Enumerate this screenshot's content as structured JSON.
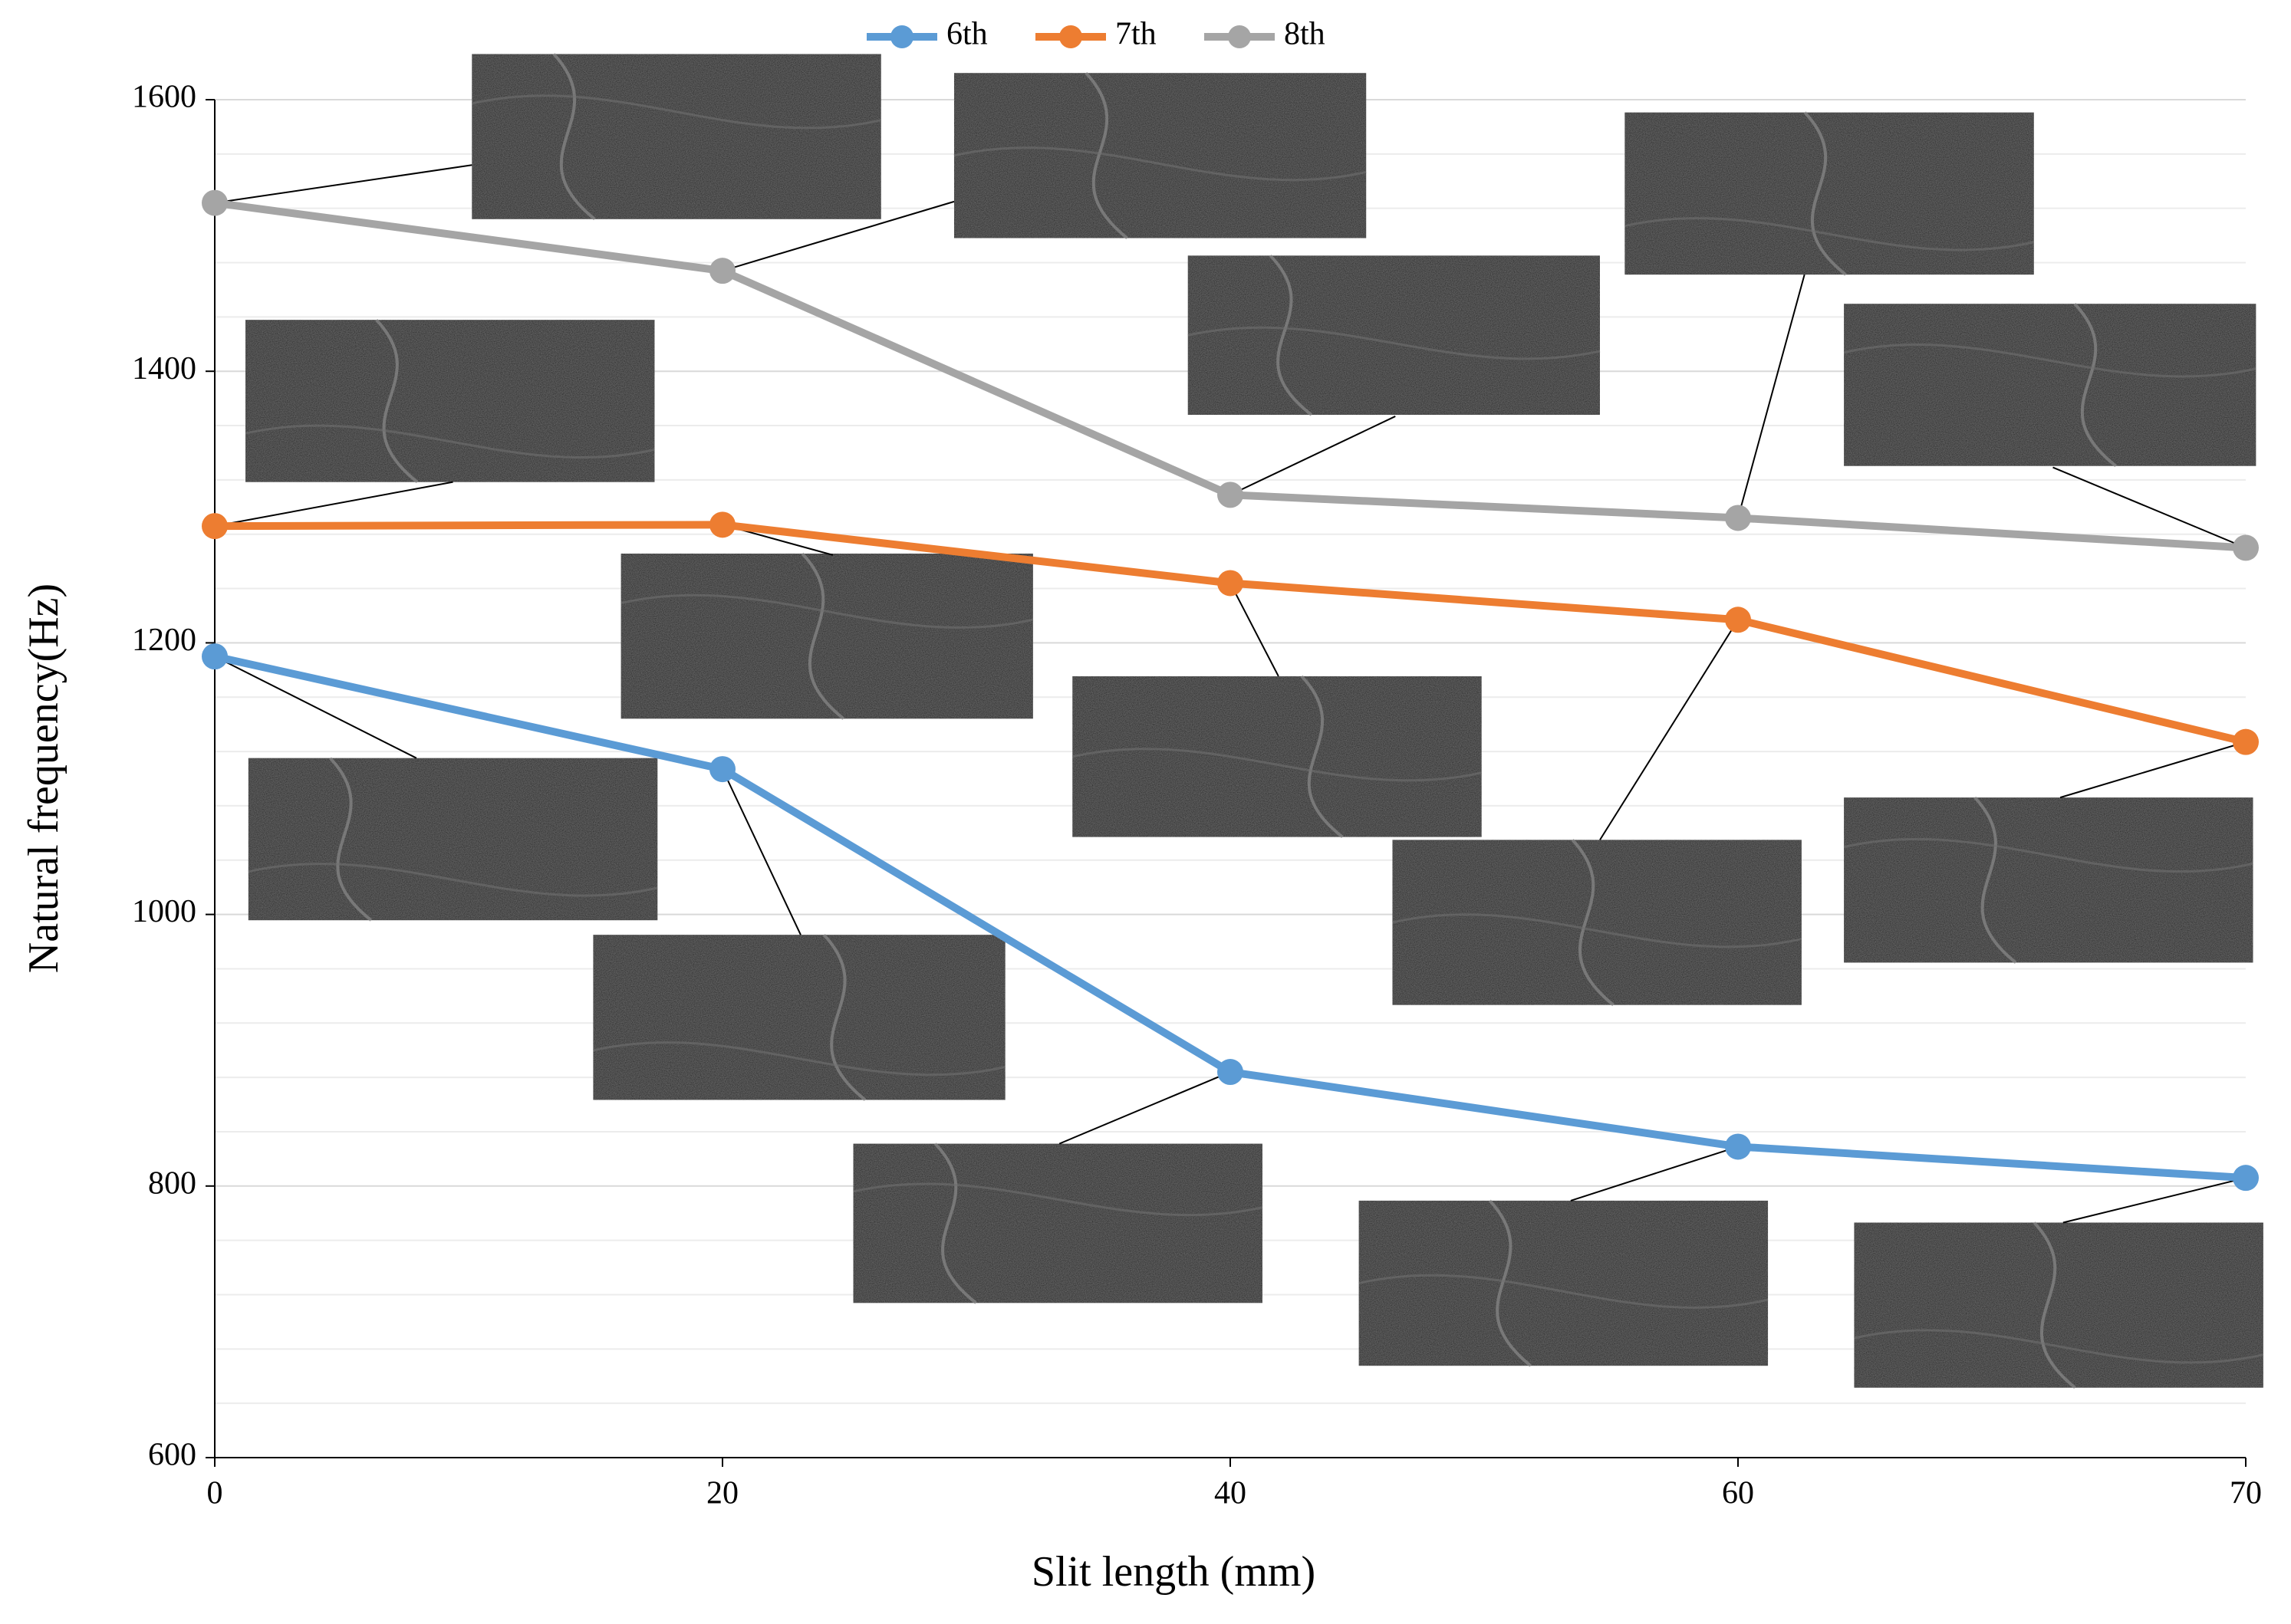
{
  "chart_data": {
    "type": "line",
    "categories": [
      "0",
      "20",
      "40",
      "60",
      "70"
    ],
    "series": [
      {
        "name": "6th",
        "color": "#5b9bd5",
        "values": [
          1190,
          1107,
          884,
          829,
          806
        ]
      },
      {
        "name": "7th",
        "color": "#ed7d31",
        "values": [
          1286,
          1287,
          1244,
          1217,
          1127
        ]
      },
      {
        "name": "8th",
        "color": "#a5a5a5",
        "values": [
          1524,
          1474,
          1309,
          1292,
          1270
        ]
      }
    ],
    "x_label": "Slit length (mm)",
    "y_label": "Natural frequency(Hz)",
    "ylim": [
      600,
      1600
    ],
    "yticks": [
      600,
      800,
      1000,
      1200,
      1400,
      1600
    ],
    "minor_yticks": [
      640,
      680,
      720,
      760,
      840,
      880,
      920,
      960,
      1040,
      1080,
      1120,
      1160,
      1240,
      1280,
      1320,
      1360,
      1440,
      1480,
      1520,
      1560
    ],
    "grid": true,
    "legend": "top"
  }
}
